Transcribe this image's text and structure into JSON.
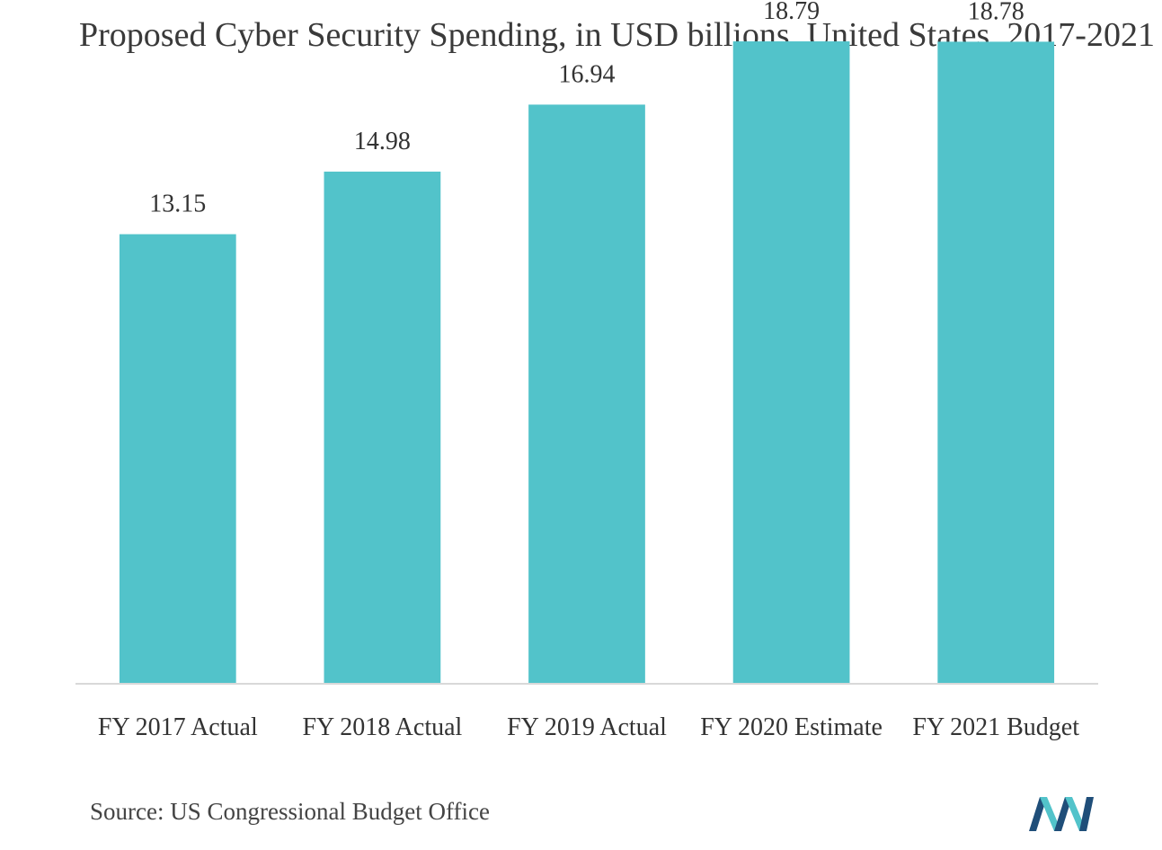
{
  "chart_data": {
    "type": "bar",
    "title": "Proposed Cyber Security Spending, in USD billions, United States, 2017-2021",
    "categories": [
      "FY 2017 Actual",
      "FY 2018 Actual",
      "FY 2019 Actual",
      "FY 2020 Estimate",
      "FY 2021 Budget"
    ],
    "values": [
      13.15,
      14.98,
      16.94,
      18.79,
      18.78
    ],
    "value_labels": [
      "13.15",
      "14.98",
      "16.94",
      "18.79",
      "18.78"
    ],
    "xlabel": "",
    "ylabel": "",
    "ylim": [
      0,
      20
    ],
    "grid": false,
    "legend": "none",
    "bar_color": "#52c3ca"
  },
  "source": "Source: US Congressional Budget Office",
  "logo": {
    "icon": "mordor-intelligence-logo-icon",
    "colors": [
      "#1f4e79",
      "#52c3ca"
    ]
  }
}
